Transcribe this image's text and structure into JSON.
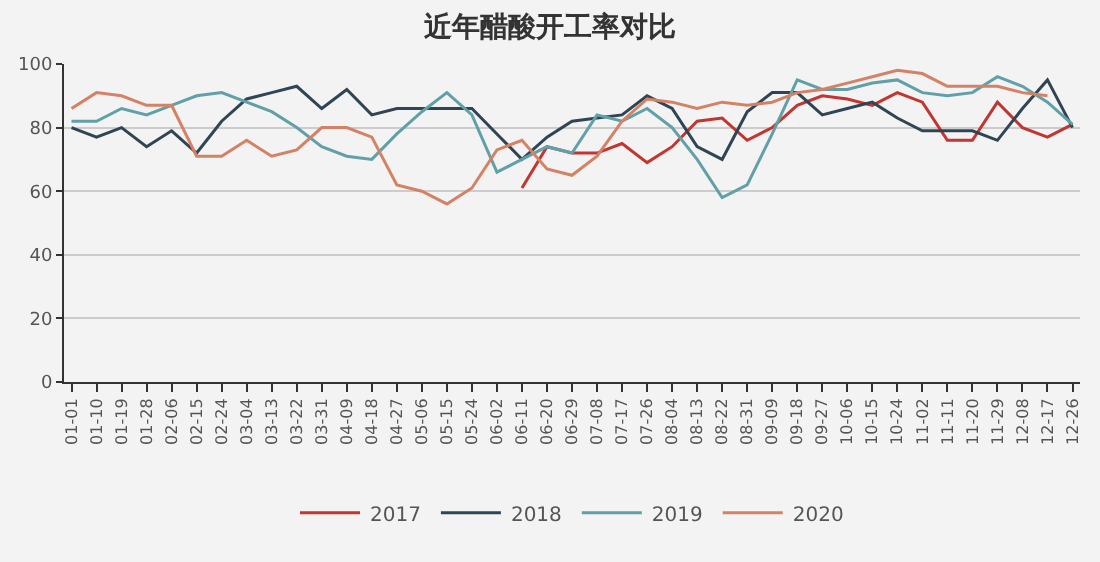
{
  "chart_data": {
    "type": "line",
    "title": "近年醋酸开工率对比",
    "categories": [
      "01-01",
      "01-10",
      "01-19",
      "01-28",
      "02-06",
      "02-15",
      "02-24",
      "03-04",
      "03-13",
      "03-22",
      "03-31",
      "04-09",
      "04-18",
      "04-27",
      "05-06",
      "05-15",
      "05-24",
      "06-02",
      "06-11",
      "06-20",
      "06-29",
      "07-08",
      "07-17",
      "07-26",
      "08-04",
      "08-13",
      "08-22",
      "08-31",
      "09-09",
      "09-18",
      "09-27",
      "10-06",
      "10-15",
      "10-24",
      "11-02",
      "11-11",
      "11-20",
      "11-29",
      "12-08",
      "12-17",
      "12-26"
    ],
    "series": [
      {
        "name": "2017",
        "color": "#c23531",
        "values": [
          null,
          null,
          null,
          null,
          null,
          null,
          null,
          null,
          null,
          null,
          null,
          null,
          null,
          null,
          null,
          null,
          null,
          null,
          61,
          74,
          72,
          72,
          75,
          69,
          74,
          82,
          83,
          76,
          80,
          87,
          90,
          89,
          87,
          91,
          88,
          76,
          76,
          88,
          80,
          77,
          81
        ]
      },
      {
        "name": "2018",
        "color": "#2f4554",
        "values": [
          80,
          77,
          80,
          74,
          79,
          72,
          82,
          89,
          91,
          93,
          86,
          92,
          84,
          86,
          86,
          86,
          86,
          78,
          70,
          77,
          82,
          83,
          84,
          90,
          86,
          74,
          70,
          85,
          91,
          91,
          84,
          86,
          88,
          83,
          79,
          79,
          79,
          76,
          86,
          95,
          80
        ]
      },
      {
        "name": "2019",
        "color": "#61a0a8",
        "values": [
          82,
          82,
          86,
          84,
          87,
          90,
          91,
          88,
          85,
          80,
          74,
          71,
          70,
          78,
          85,
          91,
          84,
          66,
          70,
          74,
          72,
          84,
          82,
          86,
          80,
          70,
          58,
          62,
          78,
          95,
          92,
          92,
          94,
          95,
          91,
          90,
          91,
          96,
          93,
          88,
          81
        ]
      },
      {
        "name": "2020",
        "color": "#d48265",
        "values": [
          86,
          91,
          90,
          87,
          87,
          71,
          71,
          76,
          71,
          73,
          80,
          80,
          77,
          62,
          60,
          56,
          61,
          73,
          76,
          67,
          65,
          71,
          82,
          89,
          88,
          86,
          88,
          87,
          88,
          91,
          92,
          94,
          96,
          98,
          97,
          93,
          93,
          93,
          91,
          90,
          null
        ]
      }
    ],
    "ylim": [
      0,
      100
    ],
    "yticks": [
      0,
      20,
      40,
      60,
      80,
      100
    ],
    "grid": "y",
    "legend": "bottom",
    "marker": "none",
    "line_style": "solid"
  }
}
